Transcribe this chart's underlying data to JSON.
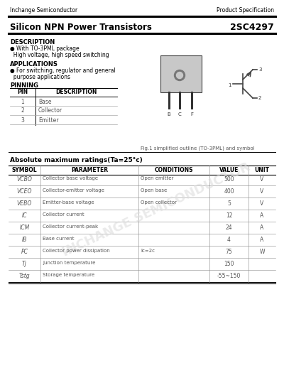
{
  "company": "Inchange Semiconductor",
  "spec_label": "Product Specification",
  "title": "Silicon NPN Power Transistors",
  "part_number": "2SC4297",
  "description_title": "DESCRIPTION",
  "desc_bullet": "● With TO-3PML package",
  "desc_line2": "  High voltage, high speed switching",
  "applications_title": "APPLICATIONS",
  "app_bullet": "● For switching, regulator and general",
  "app_line2": "  purpose applications",
  "pinning_title": "PINNING",
  "pin_headers": [
    "PIN",
    "DESCRIPTION"
  ],
  "pin_rows": [
    [
      "1",
      "Base"
    ],
    [
      "2",
      "Collector"
    ],
    [
      "3",
      "Emitter"
    ]
  ],
  "fig_caption": "Fig.1 simplified outline (TO-3PML) and symbol",
  "abs_max_title": "Absolute maximum ratings(Ta=25°c)",
  "abs_headers": [
    "SYMBOL",
    "PARAMETER",
    "CONDITIONS",
    "VALUE",
    "UNIT"
  ],
  "symbol_display": [
    "VCBO",
    "VCEO",
    "VEBO",
    "IC",
    "ICM",
    "IB",
    "PC",
    "Tj",
    "Tstg"
  ],
  "params": [
    "Collector base voltage",
    "Collector-emitter voltage",
    "Emitter-base voltage",
    "Collector current",
    "Collector current-peak",
    "Base current",
    "Collector power dissipation",
    "Junction temperature",
    "Storage temperature"
  ],
  "conditions": [
    "Open emitter",
    "Open base",
    "Open collector",
    "",
    "",
    "",
    "Ic=2c",
    "",
    ""
  ],
  "values": [
    "500",
    "400",
    "5",
    "12",
    "24",
    "4",
    "75",
    "150",
    "-55~150"
  ],
  "units": [
    "V",
    "V",
    "V",
    "A",
    "A",
    "A",
    "W",
    "",
    ""
  ],
  "watermark": "INCHANGE SEMICONDUCTOR",
  "bg_color": "#ffffff",
  "text_color": "#000000",
  "gray_text": "#555555"
}
